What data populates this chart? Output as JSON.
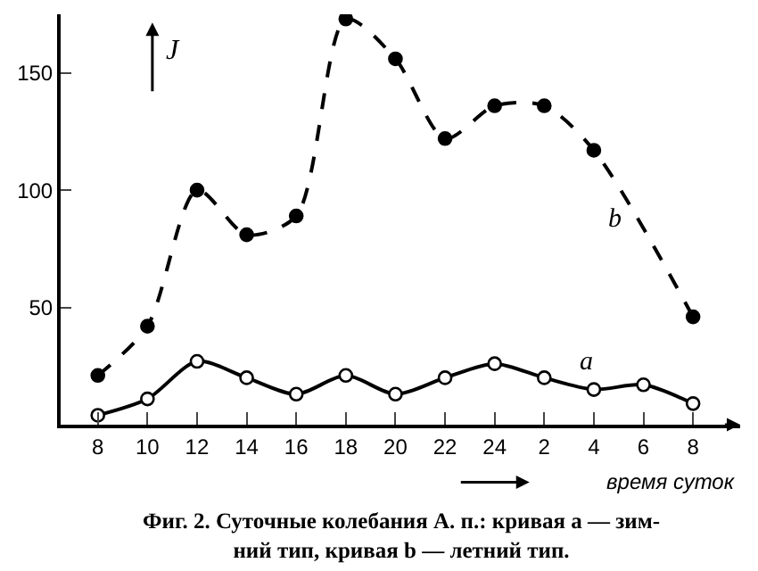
{
  "chart_data": {
    "type": "line",
    "categories": [
      "8",
      "10",
      "12",
      "14",
      "16",
      "18",
      "20",
      "22",
      "24",
      "2",
      "4",
      "6",
      "8"
    ],
    "series": [
      {
        "name": "a",
        "color": "#000000",
        "line_style": "solid",
        "values": [
          4,
          11,
          27,
          20,
          13,
          21,
          13,
          20,
          26,
          20,
          15,
          17,
          9
        ]
      },
      {
        "name": "b",
        "color": "#000000",
        "line_style": "dashed",
        "values": [
          21,
          42,
          100,
          81,
          89,
          173,
          156,
          122,
          136,
          136,
          117,
          null,
          46
        ]
      }
    ],
    "ylabel": "J",
    "xlabel": "время суток",
    "ylim": [
      0,
      175
    ],
    "yticks": [
      50,
      100,
      150
    ],
    "marker": "circle",
    "legend": false,
    "annotations": [
      "Фиг. 2. Суточные колебания А. п.: кривая a — зим-\nний тип, кривая b — летний тип."
    ]
  }
}
